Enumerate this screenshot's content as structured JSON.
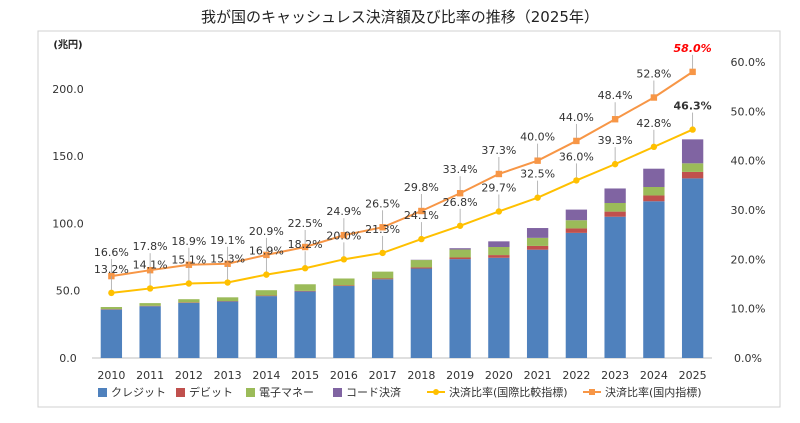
{
  "chart_data": {
    "type": "bar",
    "title": "我が国のキャッシュレス決済額及び比率の推移（2025年）",
    "y_left_unit": "(兆円)",
    "y_left_ticks": [
      "0.0",
      "50.0",
      "100.0",
      "150.0",
      "200.0"
    ],
    "y_left_range": [
      0,
      220
    ],
    "y_right_ticks": [
      "0.0%",
      "10.0%",
      "20.0%",
      "30.0%",
      "40.0%",
      "50.0%",
      "60.0%"
    ],
    "y_right_range": [
      0,
      60
    ],
    "categories": [
      "2010",
      "2011",
      "2012",
      "2013",
      "2014",
      "2015",
      "2016",
      "2017",
      "2018",
      "2019",
      "2020",
      "2021",
      "2022",
      "2023",
      "2024",
      "2025"
    ],
    "bar_series": [
      {
        "name": "クレジット",
        "color": "#4f81bd",
        "values": [
          36.0,
          38.5,
          41.0,
          42.0,
          46.0,
          49.5,
          53.5,
          58.5,
          66.5,
          73.5,
          74.5,
          80.5,
          93.0,
          105.0,
          116.5,
          133.5
        ]
      },
      {
        "name": "デビット",
        "color": "#c0504d",
        "values": [
          0.3,
          0.3,
          0.3,
          0.3,
          0.4,
          0.4,
          0.5,
          0.6,
          0.8,
          1.2,
          2.0,
          2.8,
          3.3,
          3.8,
          4.3,
          4.8
        ]
      },
      {
        "name": "電子マネー",
        "color": "#9bbb59",
        "values": [
          1.6,
          2.0,
          2.4,
          2.8,
          4.0,
          4.9,
          5.1,
          5.1,
          5.5,
          5.9,
          6.0,
          6.0,
          6.1,
          6.4,
          6.3,
          6.4
        ]
      },
      {
        "name": "コード決済",
        "color": "#8064a2",
        "values": [
          0,
          0,
          0,
          0,
          0,
          0,
          0,
          0,
          0.2,
          1.0,
          4.2,
          7.3,
          7.9,
          10.8,
          13.6,
          17.8
        ]
      }
    ],
    "line_series": [
      {
        "name": "決済比率(国際比較指標)",
        "color": "#ffc000",
        "values": [
          13.2,
          14.1,
          15.1,
          15.3,
          16.9,
          18.2,
          20.0,
          21.3,
          24.1,
          26.8,
          29.7,
          32.5,
          36.0,
          39.3,
          42.8,
          46.3
        ],
        "labels": [
          "13.2%",
          "14.1%",
          "15.1%",
          "15.3%",
          "16.9%",
          "18.2%",
          "20.0%",
          "21.3%",
          "24.1%",
          "26.8%",
          "29.7%",
          "32.5%",
          "36.0%",
          "39.3%",
          "42.8%",
          "46.3%"
        ]
      },
      {
        "name": "決済比率(国内指標)",
        "color": "#f79646",
        "values": [
          16.6,
          17.8,
          18.9,
          19.1,
          20.9,
          22.5,
          24.9,
          26.5,
          29.8,
          33.4,
          37.3,
          40.0,
          44.0,
          48.4,
          52.8,
          58.0
        ],
        "labels": [
          "16.6%",
          "17.8%",
          "18.9%",
          "19.1%",
          "20.9%",
          "22.5%",
          "24.9%",
          "26.5%",
          "29.8%",
          "33.4%",
          "37.3%",
          "40.0%",
          "44.0%",
          "48.4%",
          "52.8%",
          "58.0%"
        ]
      }
    ],
    "emphasis": {
      "domestic_last_color": "#ff0000"
    },
    "grid": false,
    "legend_position": "bottom"
  }
}
